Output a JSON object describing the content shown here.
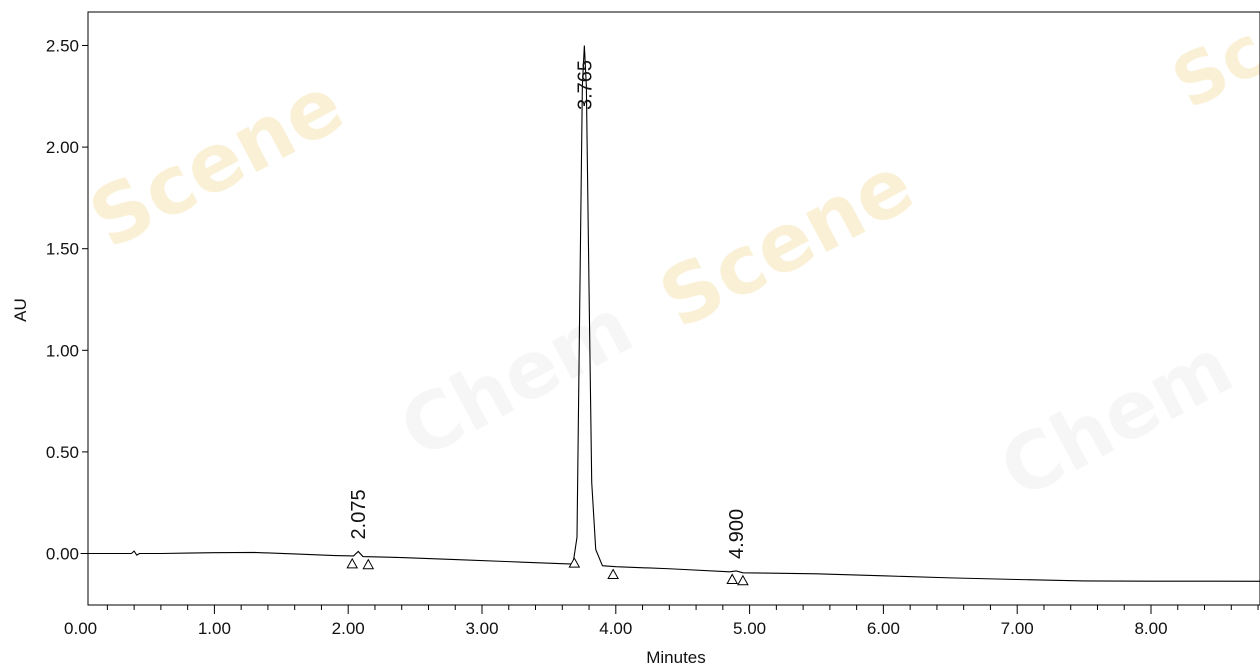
{
  "chart_data": {
    "type": "line",
    "title": "",
    "xlabel": "Minutes",
    "ylabel": "AU",
    "xlim": [
      0.0,
      8.9
    ],
    "ylim": [
      -0.27,
      2.65
    ],
    "x_ticks": [
      0.0,
      1.0,
      2.0,
      3.0,
      4.0,
      5.0,
      6.0,
      7.0,
      8.0
    ],
    "x_tick_labels": [
      "0.00",
      "1.00",
      "2.00",
      "3.00",
      "4.00",
      "5.00",
      "6.00",
      "7.00",
      "8.00"
    ],
    "x_minor_step": 0.2,
    "y_ticks": [
      0.0,
      0.5,
      1.0,
      1.5,
      2.0,
      2.5
    ],
    "y_tick_labels": [
      "0.00",
      "0.50",
      "1.00",
      "1.50",
      "2.00",
      "2.50"
    ],
    "grid": false,
    "series": [
      {
        "points": [
          [
            0.0,
            0.0
          ],
          [
            0.38,
            0.0
          ],
          [
            0.4,
            0.012
          ],
          [
            0.42,
            -0.008
          ],
          [
            0.44,
            0.0
          ],
          [
            0.6,
            0.0
          ],
          [
            0.8,
            0.002
          ],
          [
            1.0,
            0.004
          ],
          [
            1.3,
            0.005
          ],
          [
            1.6,
            -0.002
          ],
          [
            1.9,
            -0.01
          ],
          [
            2.04,
            -0.012
          ],
          [
            2.075,
            0.01
          ],
          [
            2.11,
            -0.015
          ],
          [
            2.4,
            -0.02
          ],
          [
            2.8,
            -0.03
          ],
          [
            3.2,
            -0.04
          ],
          [
            3.6,
            -0.05
          ],
          [
            3.68,
            -0.052
          ],
          [
            3.71,
            0.08
          ],
          [
            3.73,
            1.2
          ],
          [
            3.75,
            2.3
          ],
          [
            3.765,
            2.5
          ],
          [
            3.78,
            2.3
          ],
          [
            3.8,
            1.3
          ],
          [
            3.82,
            0.35
          ],
          [
            3.85,
            0.02
          ],
          [
            3.9,
            -0.06
          ],
          [
            4.0,
            -0.065
          ],
          [
            4.4,
            -0.075
          ],
          [
            4.85,
            -0.09
          ],
          [
            4.9,
            -0.086
          ],
          [
            4.95,
            -0.095
          ],
          [
            5.5,
            -0.1
          ],
          [
            6.0,
            -0.11
          ],
          [
            6.5,
            -0.12
          ],
          [
            7.0,
            -0.128
          ],
          [
            7.5,
            -0.135
          ],
          [
            8.0,
            -0.136
          ],
          [
            8.5,
            -0.136
          ],
          [
            8.9,
            -0.137
          ]
        ]
      }
    ],
    "peaks": [
      {
        "label": "2.075",
        "rt": 2.075,
        "start": 2.03,
        "end": 2.15
      },
      {
        "label": "3.765",
        "rt": 3.765,
        "start": 3.69,
        "end": 3.98
      },
      {
        "label": "4.900",
        "rt": 4.9,
        "start": 4.87,
        "end": 4.95
      }
    ],
    "watermark": "ChemScene Chemical Reagents For Life Science",
    "colors": {
      "trace": "#000000",
      "axes": "#000000",
      "watermark": "#f3e1b0"
    }
  }
}
